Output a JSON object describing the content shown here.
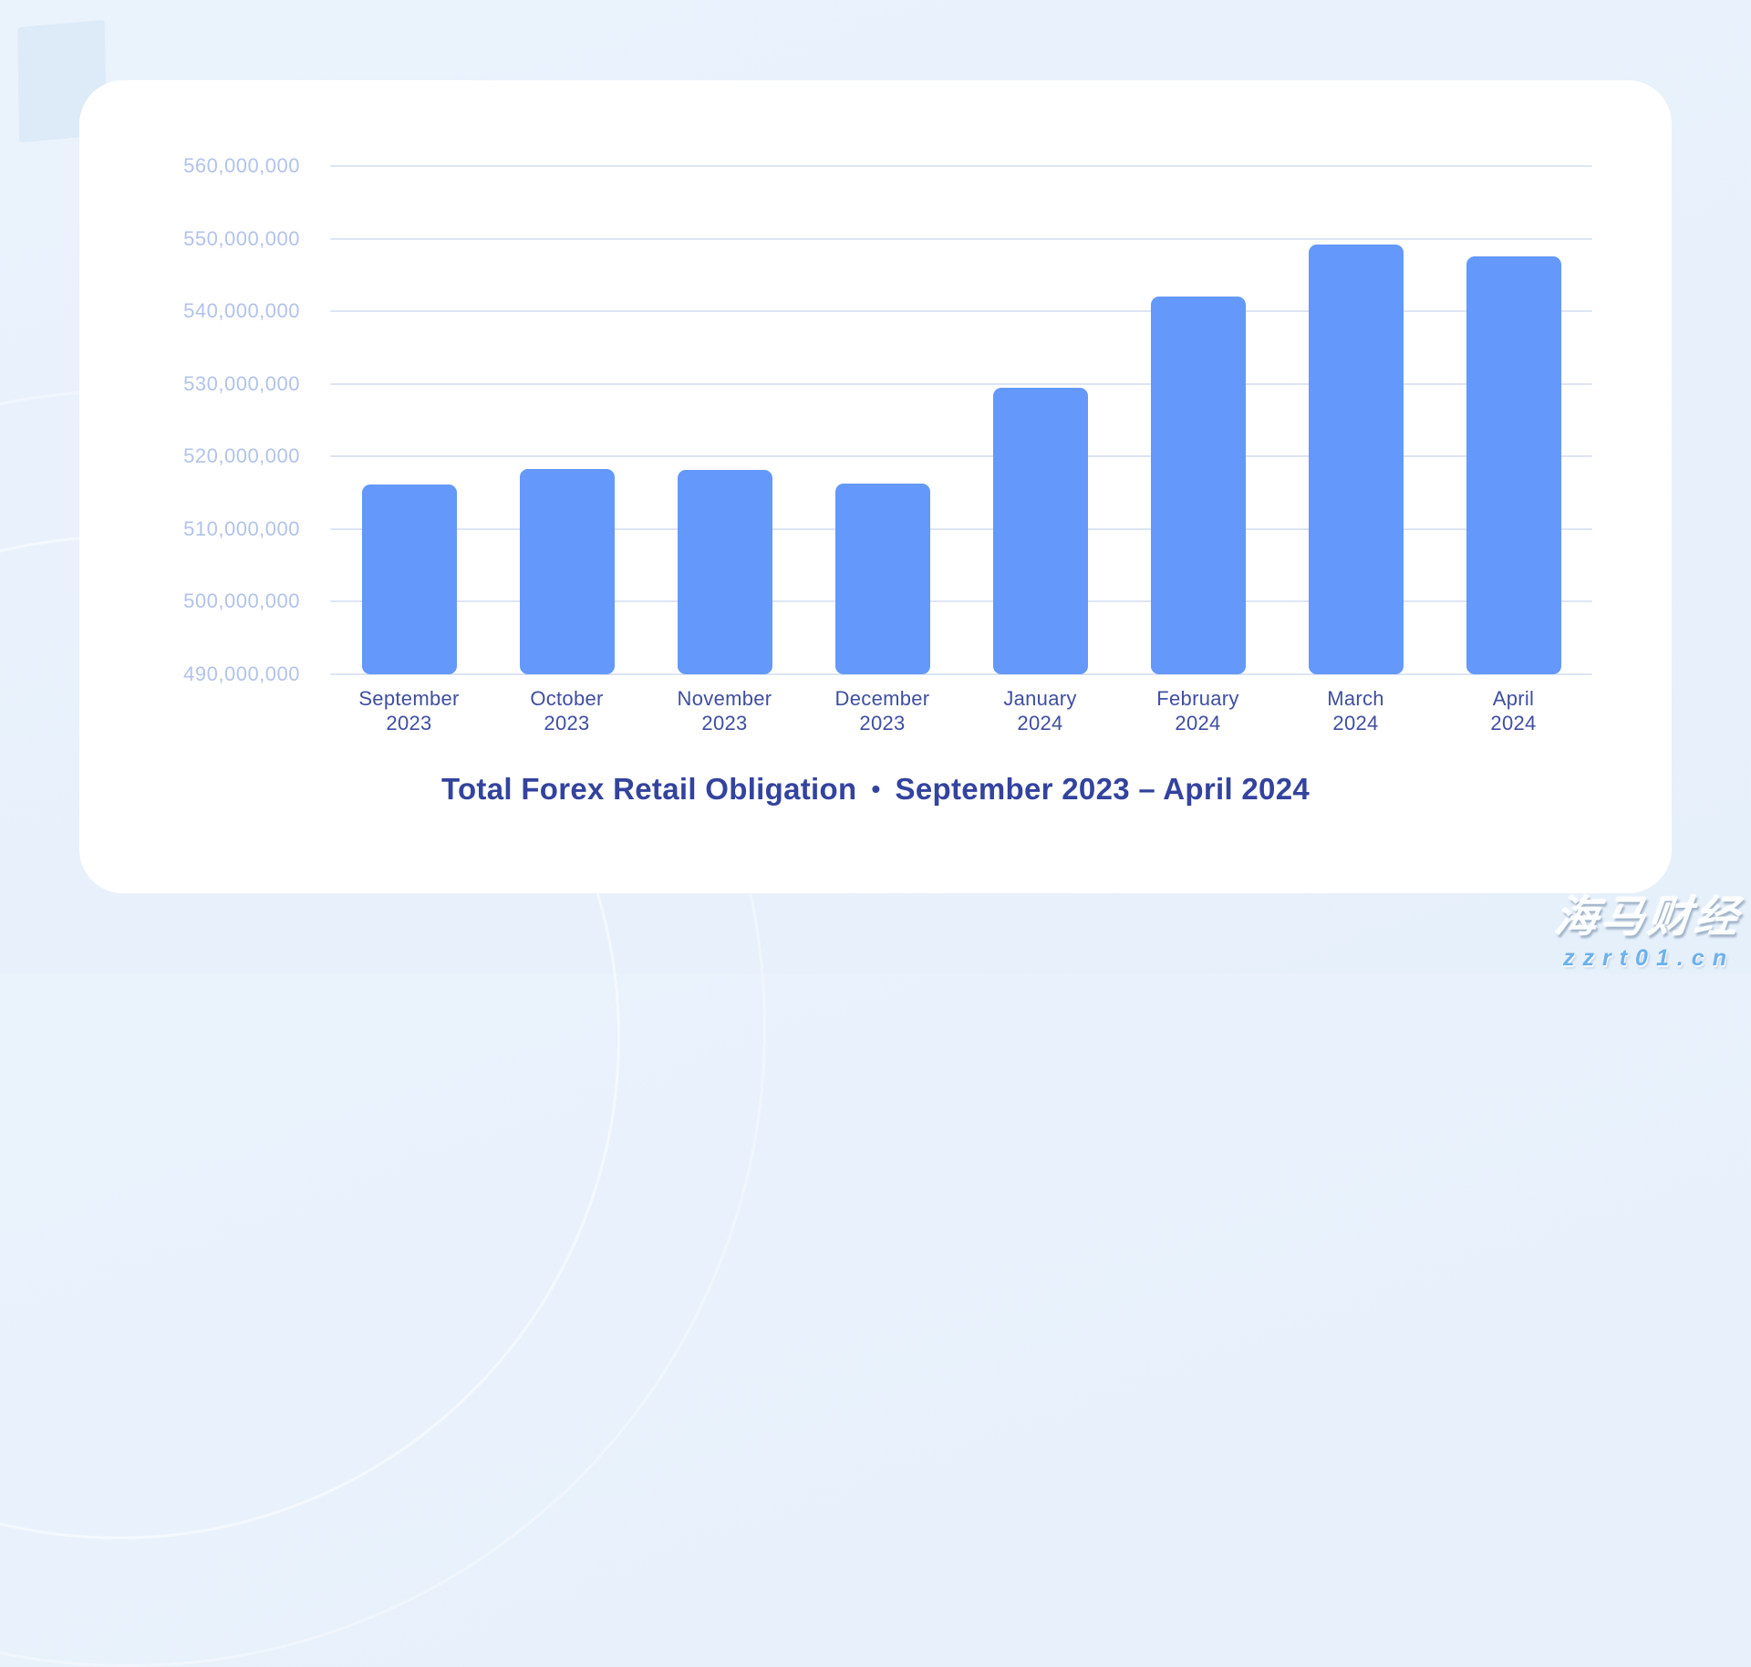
{
  "page": {
    "background_color": "#e8f1fb",
    "card_color": "#ffffff"
  },
  "chart_data": {
    "type": "bar",
    "title": "Total Forex Retail Obligation",
    "title_separator": "•",
    "title_period": "September 2023 – April 2024",
    "categories": [
      {
        "month": "September",
        "year": "2023"
      },
      {
        "month": "October",
        "year": "2023"
      },
      {
        "month": "November",
        "year": "2023"
      },
      {
        "month": "December",
        "year": "2023"
      },
      {
        "month": "January",
        "year": "2024"
      },
      {
        "month": "February",
        "year": "2024"
      },
      {
        "month": "March",
        "year": "2024"
      },
      {
        "month": "April",
        "year": "2024"
      }
    ],
    "values": [
      516200000,
      518300000,
      518100000,
      516300000,
      529400000,
      542000000,
      549200000,
      547500000
    ],
    "y_tick_labels": [
      "560,000,000",
      "550,000,000",
      "540,000,000",
      "530,000,000",
      "520,000,000",
      "510,000,000",
      "500,000,000",
      "490,000,000"
    ],
    "y_tick_values": [
      560000000,
      550000000,
      540000000,
      530000000,
      520000000,
      510000000,
      500000000,
      490000000
    ],
    "ylim": [
      490000000,
      560000000
    ],
    "xlabel": "",
    "ylabel": "",
    "grid": true,
    "legend": false,
    "colors": {
      "bar": "#6498fa",
      "gridline": "#dde5f4",
      "y_tick_label": "#b2c3ea",
      "x_tick_label": "#3f4ea1",
      "title": "#33439e"
    }
  },
  "watermark": {
    "line1": "海马财经",
    "line2": "zzrt01.cn"
  }
}
